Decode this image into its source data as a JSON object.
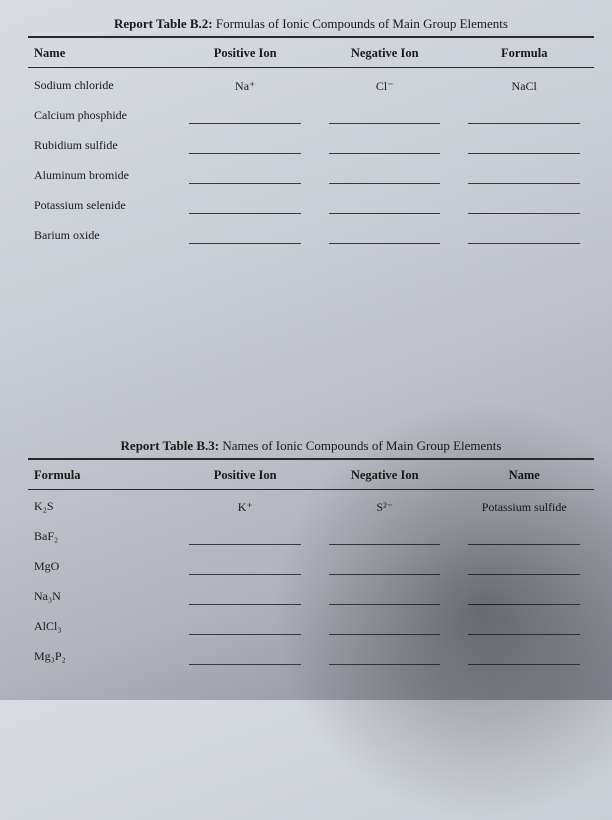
{
  "tableB2": {
    "titlePrefix": "Report Table B.2:",
    "titleText": " Formulas of Ionic Compounds of Main Group Elements",
    "headers": {
      "name": "Name",
      "positive": "Positive Ion",
      "negative": "Negative Ion",
      "formula": "Formula"
    },
    "rows": [
      {
        "name": "Sodium chloride",
        "positive": "Na⁺",
        "negative": "Cl⁻",
        "formula": "NaCl"
      },
      {
        "name": "Calcium phosphide",
        "positive": "",
        "negative": "",
        "formula": ""
      },
      {
        "name": "Rubidium sulfide",
        "positive": "",
        "negative": "",
        "formula": ""
      },
      {
        "name": "Aluminum bromide",
        "positive": "",
        "negative": "",
        "formula": ""
      },
      {
        "name": "Potassium selenide",
        "positive": "",
        "negative": "",
        "formula": ""
      },
      {
        "name": "Barium oxide",
        "positive": "",
        "negative": "",
        "formula": ""
      }
    ]
  },
  "tableB3": {
    "titlePrefix": "Report Table B.3:",
    "titleText": " Names of Ionic Compounds of Main Group Elements",
    "headers": {
      "formula": "Formula",
      "positive": "Positive Ion",
      "negative": "Negative Ion",
      "name": "Name"
    },
    "rows": [
      {
        "formula": "K₂S",
        "positive": "K⁺",
        "negative": "S²⁻",
        "name": "Potassium sulfide"
      },
      {
        "formula": "BaF₂",
        "positive": "",
        "negative": "",
        "name": ""
      },
      {
        "formula": "MgO",
        "positive": "",
        "negative": "",
        "name": ""
      },
      {
        "formula": "Na₃N",
        "positive": "",
        "negative": "",
        "name": ""
      },
      {
        "formula": "AlCl₃",
        "positive": "",
        "negative": "",
        "name": ""
      },
      {
        "formula": "Mg₃P₂",
        "positive": "",
        "negative": "",
        "name": ""
      }
    ]
  }
}
